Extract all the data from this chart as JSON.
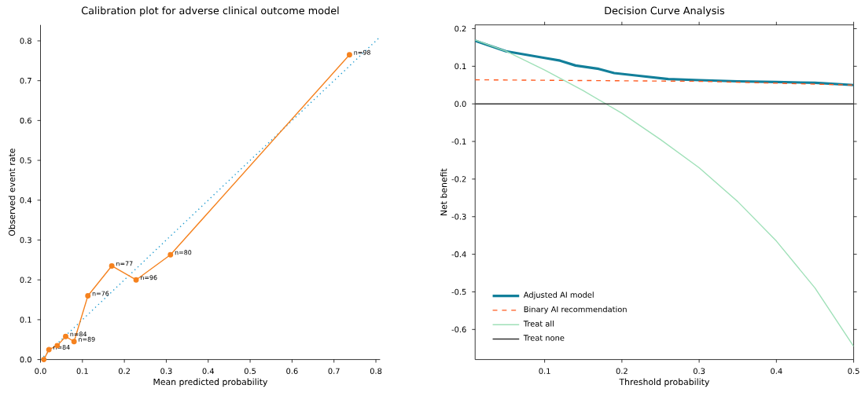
{
  "chart_data": [
    {
      "type": "line",
      "title": "Calibration plot for adverse clinical outcome model",
      "xlabel": "Mean predicted probability",
      "ylabel": "Observed event rate",
      "xlim": [
        0,
        0.81
      ],
      "ylim": [
        0,
        0.84
      ],
      "xticks": [
        {
          "value": 0,
          "label": "0.0"
        },
        0.1,
        0.2,
        0.3,
        0.4,
        0.5,
        0.6,
        0.7,
        0.8
      ],
      "yticks": [
        {
          "value": 0,
          "label": "0.0"
        },
        0.1,
        0.2,
        0.3,
        0.4,
        0.5,
        0.6,
        0.7,
        0.8
      ],
      "grid": false,
      "legend": false,
      "series": [
        {
          "color": "#1f9bcf",
          "line_style": "dotted",
          "marker": "none",
          "x": [
            0,
            0.81
          ],
          "values": [
            0,
            0.81
          ]
        },
        {
          "color": "#f5821f",
          "line_style": "solid",
          "marker": "circle",
          "x": [
            0.008,
            0.02,
            0.04,
            0.06,
            0.08,
            0.113,
            0.17,
            0.228,
            0.31,
            0.737
          ],
          "values": [
            0.0,
            0.025,
            0.035,
            0.058,
            0.045,
            0.16,
            0.235,
            0.2,
            0.263,
            0.765
          ]
        }
      ],
      "annotations": [
        {
          "text": "n=84",
          "x": 0.02,
          "y": 0.025
        },
        {
          "text": "n=84",
          "x": 0.06,
          "y": 0.058
        },
        {
          "text": "n=89",
          "x": 0.08,
          "y": 0.045
        },
        {
          "text": "n=76",
          "x": 0.113,
          "y": 0.16
        },
        {
          "text": "n=77",
          "x": 0.17,
          "y": 0.235
        },
        {
          "text": "n=96",
          "x": 0.228,
          "y": 0.2
        },
        {
          "text": "n=80",
          "x": 0.31,
          "y": 0.263
        },
        {
          "text": "n=98",
          "x": 0.737,
          "y": 0.765
        }
      ]
    },
    {
      "type": "line",
      "title": "Decision Curve Analysis",
      "xlabel": "Threshold probability",
      "ylabel": "Net benefit",
      "xlim": [
        0.01,
        0.5
      ],
      "ylim": [
        -0.68,
        0.21
      ],
      "xticks": [
        0.1,
        0.2,
        0.3,
        0.4,
        0.5
      ],
      "yticks": [
        -0.6,
        -0.5,
        -0.4,
        -0.3,
        -0.2,
        -0.1,
        {
          "value": 0,
          "label": "0.0"
        },
        0.1,
        0.2
      ],
      "grid": false,
      "legend": "bottom left",
      "series": [
        {
          "name": "Adjusted AI model",
          "color": "#127f9a",
          "line_style": "solid",
          "x": [
            0.01,
            0.05,
            0.1,
            0.12,
            0.14,
            0.17,
            0.19,
            0.22,
            0.26,
            0.3,
            0.35,
            0.4,
            0.45,
            0.5
          ],
          "values": [
            0.168,
            0.14,
            0.122,
            0.115,
            0.102,
            0.093,
            0.082,
            0.075,
            0.066,
            0.063,
            0.06,
            0.058,
            0.056,
            0.05
          ]
        },
        {
          "name": "Binary AI recommendation",
          "color": "#ff5a1f",
          "line_style": "dashed",
          "x": [
            0.01,
            0.3,
            0.5
          ],
          "values": [
            0.064,
            0.06,
            0.05
          ]
        },
        {
          "name": "Treat all",
          "color": "#9fe0b8",
          "line_style": "solid",
          "x": [
            0.01,
            0.05,
            0.1,
            0.15,
            0.2,
            0.25,
            0.3,
            0.35,
            0.4,
            0.45,
            0.5
          ],
          "values": [
            0.17,
            0.14,
            0.09,
            0.035,
            -0.025,
            -0.095,
            -0.17,
            -0.26,
            -0.365,
            -0.49,
            -0.645
          ]
        },
        {
          "name": "Treat none",
          "color": "#333333",
          "line_style": "solid",
          "x": [
            0.01,
            0.5
          ],
          "values": [
            0,
            0
          ]
        }
      ]
    }
  ]
}
